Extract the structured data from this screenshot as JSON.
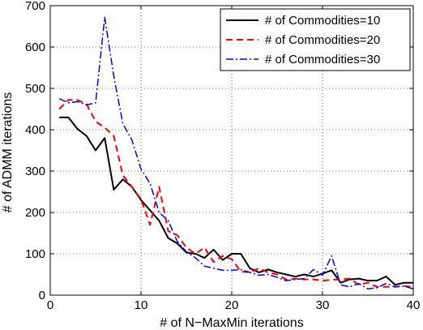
{
  "chart_data": {
    "type": "line",
    "title": "",
    "xlabel": "# of N−MaxMin iterations",
    "ylabel": "# of ADMM iterations",
    "xlim": [
      0,
      40
    ],
    "ylim": [
      0,
      700
    ],
    "xticks": [
      0,
      10,
      20,
      30,
      40
    ],
    "yticks": [
      0,
      100,
      200,
      300,
      400,
      500,
      600,
      700
    ],
    "grid": true,
    "legend_position": "top-right",
    "x": [
      1,
      2,
      3,
      4,
      5,
      6,
      7,
      8,
      9,
      10,
      11,
      12,
      13,
      14,
      15,
      16,
      17,
      18,
      19,
      20,
      21,
      22,
      23,
      24,
      25,
      26,
      27,
      28,
      29,
      30,
      31,
      32,
      33,
      34,
      35,
      36,
      37,
      38,
      39,
      40
    ],
    "series": [
      {
        "name": "# of Commodities=10",
        "color": "#000000",
        "dash": "solid",
        "values": [
          430,
          430,
          402,
          385,
          350,
          380,
          255,
          280,
          262,
          230,
          205,
          180,
          138,
          125,
          103,
          100,
          90,
          110,
          85,
          100,
          100,
          65,
          55,
          62,
          55,
          50,
          45,
          50,
          45,
          52,
          60,
          30,
          38,
          40,
          35,
          35,
          45,
          25,
          30,
          30
        ]
      },
      {
        "name": "# of Commodities=20",
        "color": "#ff0000",
        "dash": "dashed",
        "values": [
          450,
          472,
          472,
          462,
          420,
          405,
          385,
          290,
          262,
          232,
          170,
          262,
          155,
          145,
          115,
          100,
          115,
          80,
          95,
          87,
          57,
          55,
          65,
          55,
          50,
          38,
          40,
          38,
          38,
          35,
          37,
          38,
          40,
          25,
          30,
          20,
          20,
          20,
          22,
          20
        ]
      },
      {
        "name": "# of Commodities=30",
        "color": "#0000ff",
        "dash": "dashdot",
        "values": [
          475,
          465,
          468,
          460,
          465,
          672,
          530,
          415,
          375,
          305,
          270,
          200,
          180,
          130,
          105,
          90,
          70,
          65,
          60,
          60,
          62,
          55,
          48,
          50,
          43,
          35,
          38,
          40,
          62,
          48,
          95,
          25,
          20,
          28,
          15,
          18,
          28,
          20,
          22,
          15
        ]
      }
    ]
  }
}
